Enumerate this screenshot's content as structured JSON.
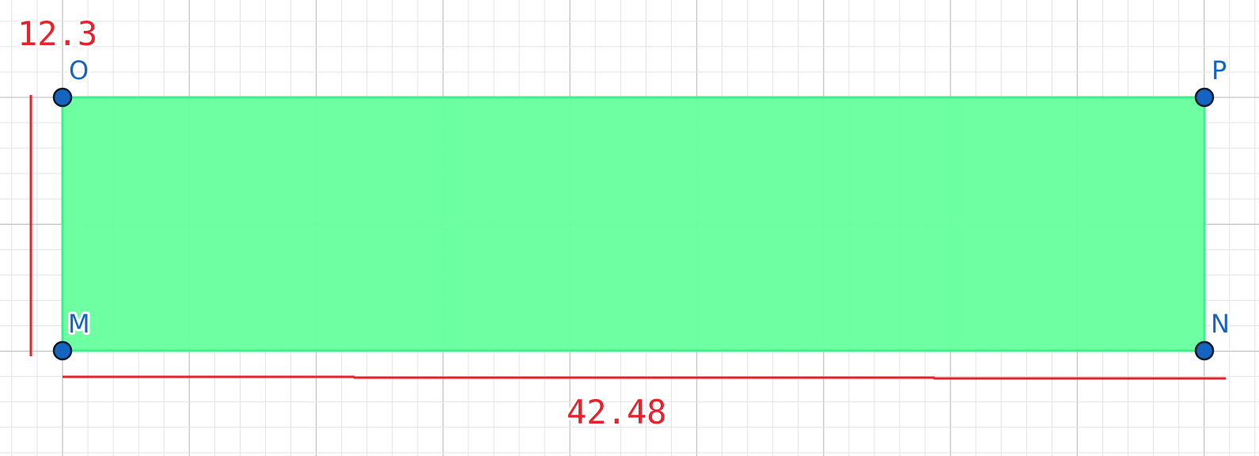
{
  "diagram": {
    "points": [
      {
        "id": "M",
        "label": "M"
      },
      {
        "id": "N",
        "label": "N"
      },
      {
        "id": "O",
        "label": "O"
      },
      {
        "id": "P",
        "label": "P"
      }
    ],
    "rectangle_vertices": [
      "M",
      "N",
      "P",
      "O"
    ],
    "measurements": {
      "height": {
        "label": "12.3"
      },
      "width": {
        "label": "42.48"
      }
    }
  },
  "colors": {
    "fill": "#66ff9e",
    "fill_edge": "#3ff08a",
    "point_fill": "#1565c0",
    "point_stroke": "#0d1b2a",
    "label": "#1565c0",
    "measure": "#e8212b",
    "grid_minor": "#e3e3e3",
    "grid_major": "#c4c4c4"
  }
}
